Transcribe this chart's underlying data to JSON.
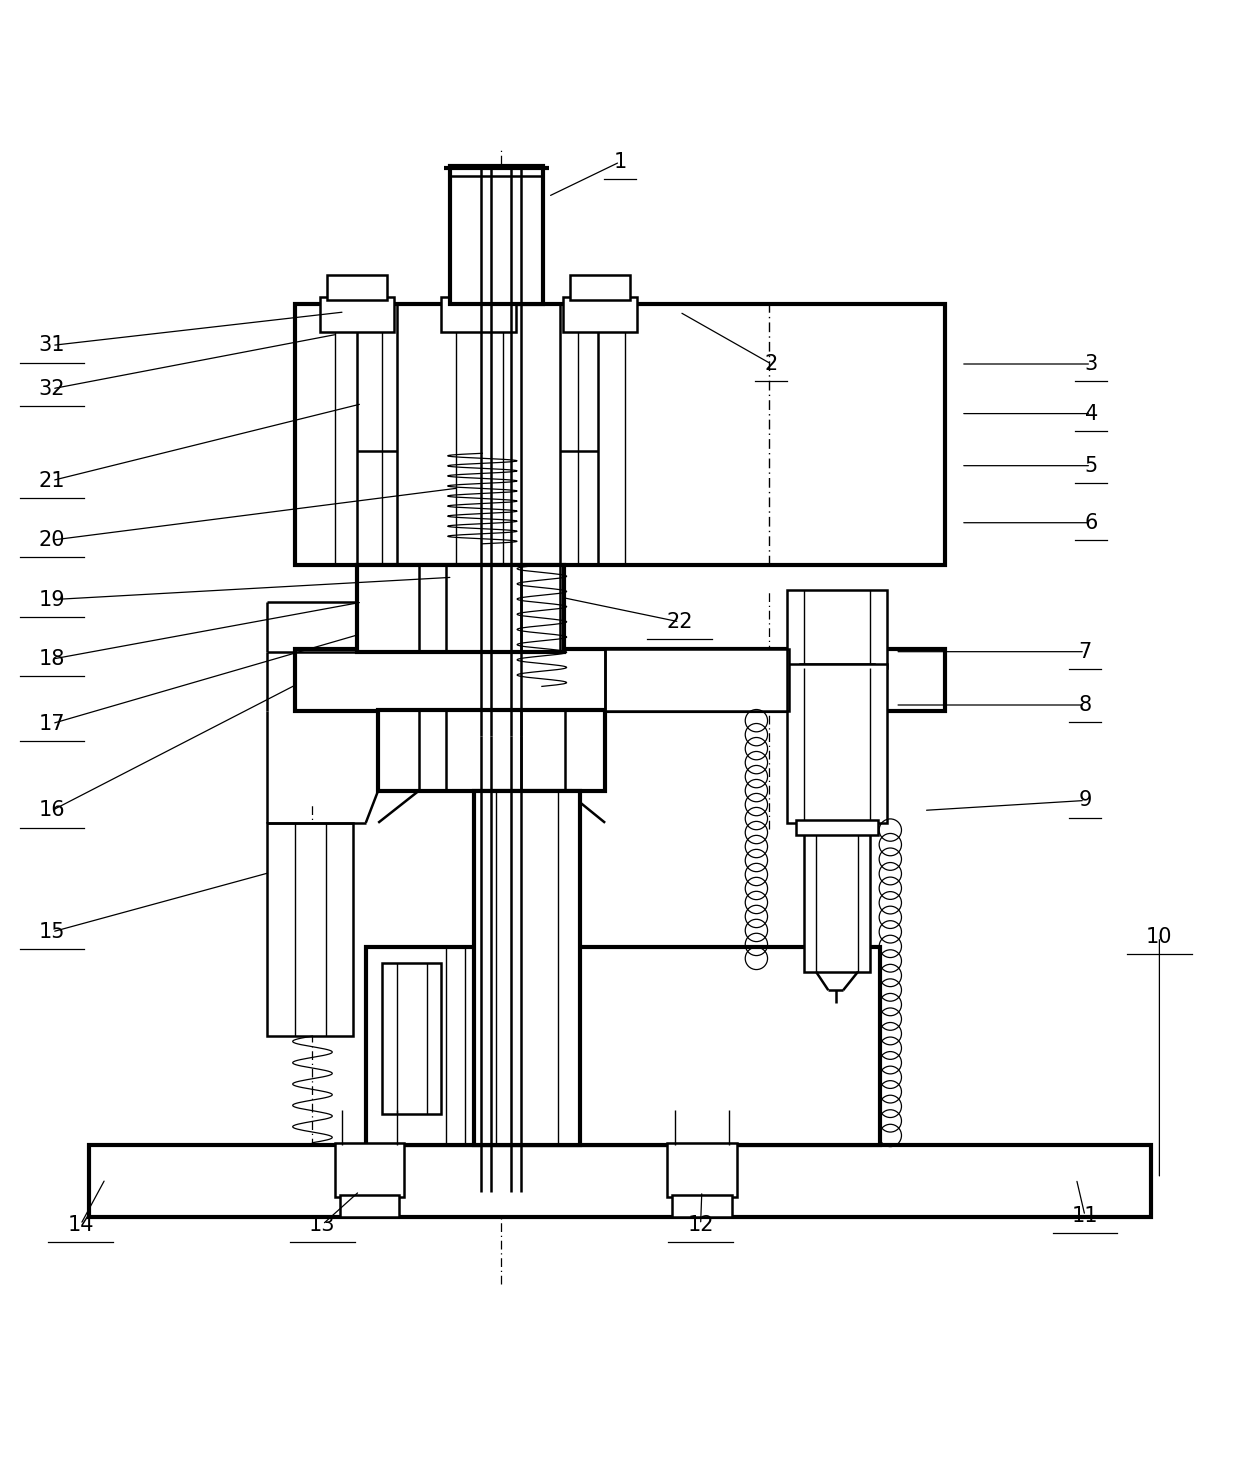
{
  "bg": "#ffffff",
  "lc": "#000000",
  "lw": 1.8,
  "tlw": 3.0,
  "slw": 1.0,
  "fs": 15,
  "fig_w": 12.4,
  "fig_h": 14.72,
  "labels": [
    [
      1,
      0.5,
      0.963,
      0.442,
      0.935
    ],
    [
      2,
      0.622,
      0.8,
      0.548,
      0.842
    ],
    [
      3,
      0.88,
      0.8,
      0.775,
      0.8
    ],
    [
      4,
      0.88,
      0.76,
      0.775,
      0.76
    ],
    [
      5,
      0.88,
      0.718,
      0.775,
      0.718
    ],
    [
      6,
      0.88,
      0.672,
      0.775,
      0.672
    ],
    [
      7,
      0.875,
      0.568,
      0.722,
      0.568
    ],
    [
      8,
      0.875,
      0.525,
      0.722,
      0.525
    ],
    [
      9,
      0.875,
      0.448,
      0.745,
      0.44
    ],
    [
      10,
      0.935,
      0.338,
      0.935,
      0.143
    ],
    [
      11,
      0.875,
      0.113,
      0.868,
      0.143
    ],
    [
      12,
      0.565,
      0.106,
      0.566,
      0.133
    ],
    [
      13,
      0.26,
      0.106,
      0.29,
      0.133
    ],
    [
      14,
      0.065,
      0.106,
      0.085,
      0.143
    ],
    [
      15,
      0.042,
      0.342,
      0.218,
      0.39
    ],
    [
      16,
      0.042,
      0.44,
      0.24,
      0.542
    ],
    [
      17,
      0.042,
      0.51,
      0.29,
      0.582
    ],
    [
      18,
      0.042,
      0.562,
      0.292,
      0.608
    ],
    [
      19,
      0.042,
      0.61,
      0.365,
      0.628
    ],
    [
      20,
      0.042,
      0.658,
      0.37,
      0.7
    ],
    [
      21,
      0.042,
      0.706,
      0.292,
      0.768
    ],
    [
      22,
      0.548,
      0.592,
      0.452,
      0.612
    ],
    [
      31,
      0.042,
      0.815,
      0.278,
      0.842
    ],
    [
      32,
      0.042,
      0.78,
      0.272,
      0.824
    ]
  ]
}
